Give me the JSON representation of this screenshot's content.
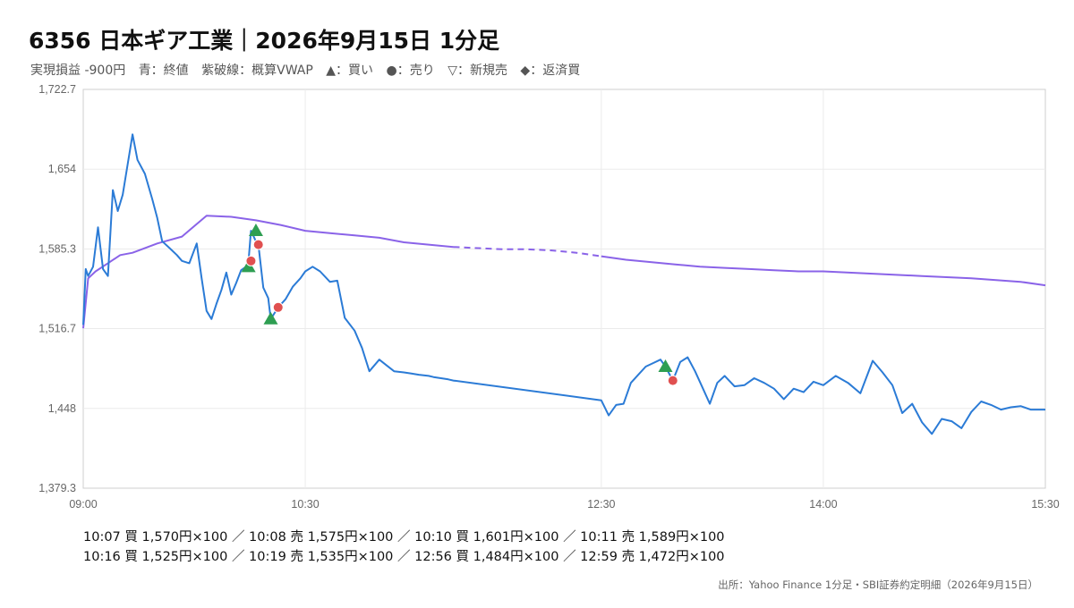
{
  "header": {
    "title": "6356 日本ギア工業｜2026年9月15日 1分足",
    "legend": [
      "実現損益 -900円",
      "青：終値",
      "紫破線：概算VWAP",
      "▲：買い",
      "●：売り",
      "▽：新規売",
      "◆：返済買"
    ]
  },
  "chart_data": {
    "type": "line",
    "title": "6356 日本ギア工業｜2026年9月15日 1分足",
    "y_ticks": [
      "1,722.7",
      "1,654",
      "1,585.3",
      "1,516.7",
      "1,448",
      "1,379.3"
    ],
    "x_ticks": [
      "09:00",
      "10:30",
      "12:30",
      "14:00",
      "15:30"
    ],
    "ylim": [
      1379.3,
      1722.7
    ],
    "grid": true,
    "colors": {
      "close": "#2b7bd6",
      "vwap": "#8a63e8",
      "buy": "#2e9e52",
      "sell": "#e05050"
    },
    "series": [
      {
        "name": "終値",
        "x": [
          "09:00",
          "09:01",
          "09:02",
          "09:04",
          "09:06",
          "09:08",
          "09:10",
          "09:12",
          "09:14",
          "09:16",
          "09:18",
          "09:20",
          "09:22",
          "09:25",
          "09:28",
          "09:30",
          "09:32",
          "09:35",
          "09:38",
          "09:40",
          "09:43",
          "09:46",
          "09:48",
          "09:50",
          "09:52",
          "09:54",
          "09:56",
          "09:58",
          "10:00",
          "10:02",
          "10:04",
          "10:06",
          "10:07",
          "10:08",
          "10:10",
          "10:11",
          "10:13",
          "10:15",
          "10:16",
          "10:19",
          "10:22",
          "10:25",
          "10:28",
          "10:30",
          "10:33",
          "10:36",
          "10:40",
          "10:43",
          "10:46",
          "10:50",
          "10:53",
          "10:56",
          "11:00",
          "11:03",
          "11:06",
          "11:10",
          "11:13",
          "11:16",
          "11:20",
          "11:22",
          "11:25",
          "11:28",
          "11:30",
          "12:30",
          "12:33",
          "12:36",
          "12:39",
          "12:42",
          "12:45",
          "12:48",
          "12:51",
          "12:54",
          "12:56",
          "12:59",
          "13:02",
          "13:05",
          "13:08",
          "13:11",
          "13:14",
          "13:17",
          "13:20",
          "13:24",
          "13:28",
          "13:32",
          "13:36",
          "13:40",
          "13:44",
          "13:48",
          "13:52",
          "13:56",
          "14:00",
          "14:05",
          "14:10",
          "14:15",
          "14:20",
          "14:24",
          "14:28",
          "14:32",
          "14:36",
          "14:40",
          "14:44",
          "14:48",
          "14:52",
          "14:56",
          "15:00",
          "15:04",
          "15:08",
          "15:12",
          "15:16",
          "15:20",
          "15:24",
          "15:27",
          "15:30"
        ],
        "values": [
          1520,
          1568,
          1562,
          1570,
          1604,
          1568,
          1562,
          1636,
          1618,
          1632,
          1658,
          1684,
          1662,
          1650,
          1628,
          1612,
          1592,
          1586,
          1580,
          1575,
          1573,
          1590,
          1560,
          1532,
          1525,
          1538,
          1550,
          1565,
          1546,
          1556,
          1567,
          1570,
          1575,
          1601,
          1592,
          1589,
          1552,
          1543,
          1525,
          1535,
          1542,
          1553,
          1560,
          1566,
          1570,
          1566,
          1557,
          1558,
          1526,
          1515,
          1500,
          1480,
          1490,
          1485,
          1480,
          1479,
          1478,
          1477,
          1476,
          1475,
          1474,
          1473,
          1472,
          1455,
          1442,
          1451,
          1452,
          1470,
          1477,
          1484,
          1487,
          1490,
          1484,
          1472,
          1488,
          1492,
          1480,
          1466,
          1452,
          1470,
          1476,
          1467,
          1468,
          1474,
          1470,
          1465,
          1456,
          1465,
          1462,
          1471,
          1468,
          1476,
          1470,
          1461,
          1489,
          1479,
          1468,
          1444,
          1452,
          1436,
          1426,
          1439,
          1437,
          1431,
          1445,
          1454,
          1451,
          1447,
          1449,
          1450,
          1447,
          1447,
          1447
        ]
      },
      {
        "name": "概算VWAP",
        "x": [
          "09:00",
          "09:02",
          "09:05",
          "09:10",
          "09:15",
          "09:20",
          "09:30",
          "09:40",
          "09:50",
          "10:00",
          "10:10",
          "10:20",
          "10:30",
          "10:40",
          "10:50",
          "11:00",
          "11:10",
          "11:20",
          "11:30",
          "11:40",
          "11:50",
          "12:00",
          "12:10",
          "12:20",
          "12:30",
          "12:40",
          "12:50",
          "13:00",
          "13:10",
          "13:20",
          "13:30",
          "13:40",
          "13:50",
          "14:00",
          "14:20",
          "14:40",
          "15:00",
          "15:20",
          "15:30"
        ],
        "values": [
          1517,
          1560,
          1566,
          1573,
          1580,
          1582,
          1590,
          1596,
          1614,
          1613,
          1610,
          1606,
          1601,
          1599,
          1597,
          1595,
          1591,
          1589,
          1587,
          1586,
          1585,
          1585,
          1584,
          1582,
          1579,
          1576,
          1574,
          1572,
          1570,
          1569,
          1568,
          1567,
          1566,
          1566,
          1564,
          1562,
          1560,
          1557,
          1554
        ]
      }
    ],
    "markers": [
      {
        "time": "10:07",
        "side": "買",
        "price": 1570
      },
      {
        "time": "10:08",
        "side": "売",
        "price": 1575
      },
      {
        "time": "10:10",
        "side": "買",
        "price": 1601
      },
      {
        "time": "10:11",
        "side": "売",
        "price": 1589
      },
      {
        "time": "10:16",
        "side": "買",
        "price": 1525
      },
      {
        "time": "10:19",
        "side": "売",
        "price": 1535
      },
      {
        "time": "12:56",
        "side": "買",
        "price": 1484
      },
      {
        "time": "12:59",
        "side": "売",
        "price": 1472
      }
    ]
  },
  "trades": {
    "line1": "10:07 買 1,570円×100 ／ 10:08 売 1,575円×100 ／ 10:10 買 1,601円×100 ／ 10:11 売 1,589円×100",
    "line2": "10:16 買 1,525円×100 ／ 10:19 売 1,535円×100 ／ 12:56 買 1,484円×100 ／ 12:59 売 1,472円×100"
  },
  "source": "出所：Yahoo Finance 1分足・SBI証券約定明細（2026年9月15日）"
}
